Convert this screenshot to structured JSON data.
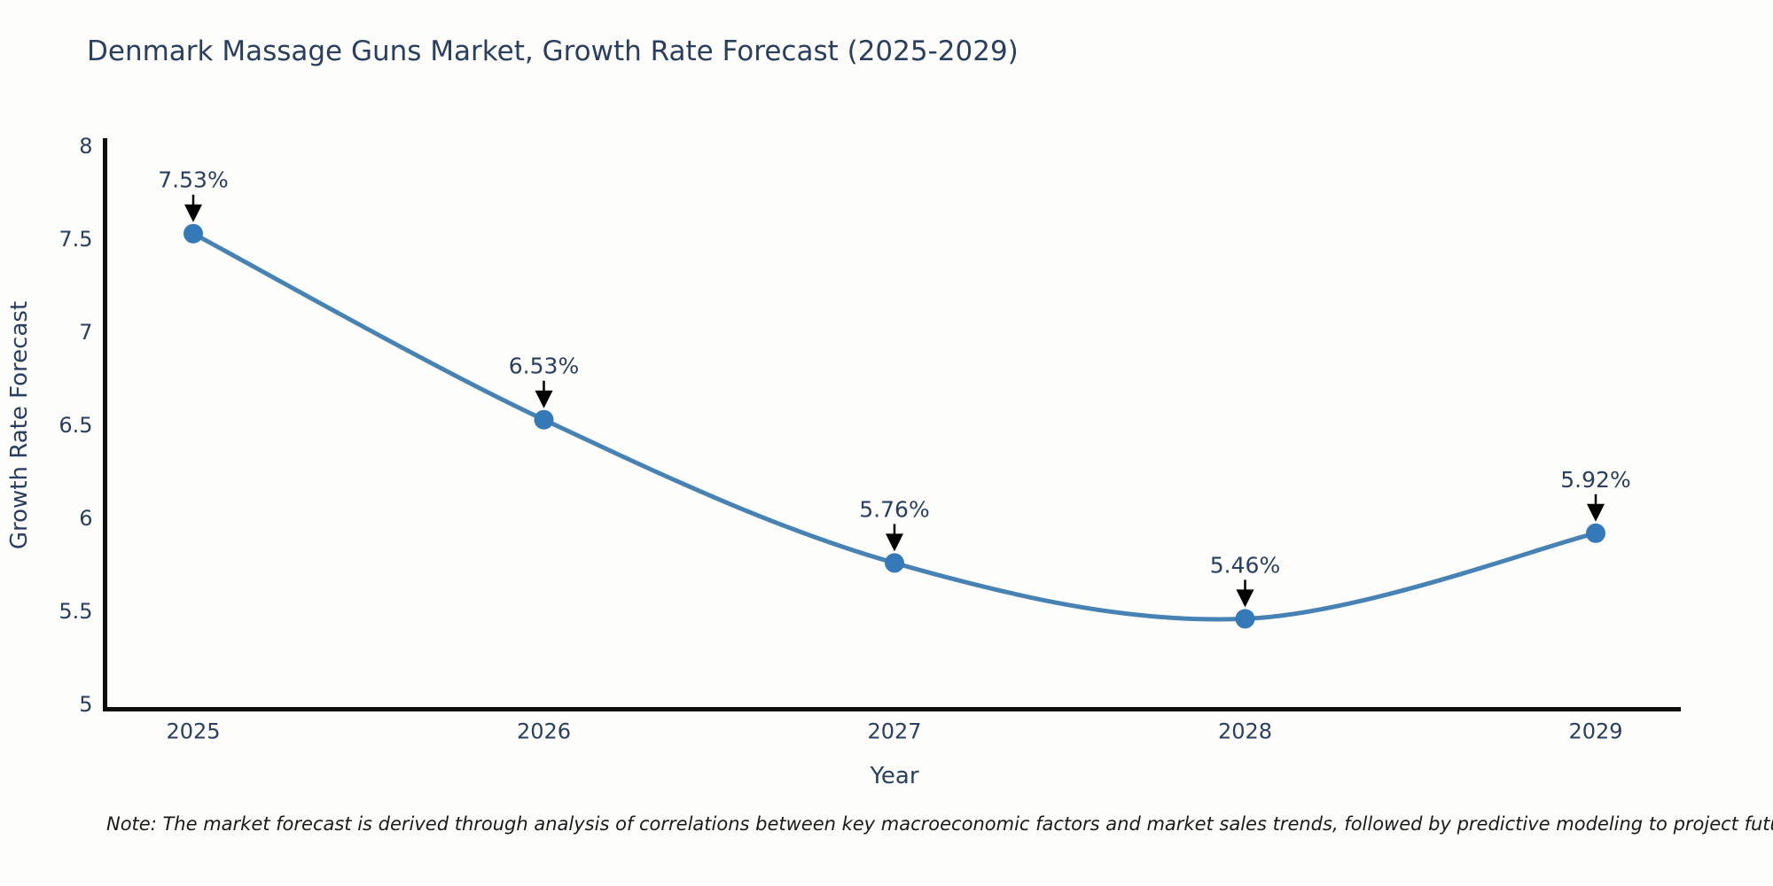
{
  "chart_data": {
    "type": "line",
    "line_shape": "spline",
    "title": "Denmark Massage Guns Market, Growth Rate Forecast (2025-2029)",
    "xlabel": "Year",
    "ylabel": "Growth Rate Forecast",
    "categories": [
      "2025",
      "2026",
      "2027",
      "2028",
      "2029"
    ],
    "series": [
      {
        "name": "Growth Rate Forecast",
        "values": [
          7.53,
          6.53,
          5.76,
          5.46,
          5.92
        ]
      }
    ],
    "point_labels": [
      "7.53%",
      "6.53%",
      "5.76%",
      "5.46%",
      "5.92%"
    ],
    "ylim": [
      5,
      8
    ],
    "yticks": [
      5,
      5.5,
      6,
      6.5,
      7,
      7.5,
      8
    ],
    "ytick_labels": [
      "5",
      "5.5",
      "6",
      "6.5",
      "7",
      "7.5",
      "8"
    ],
    "grid": false,
    "legend_position": "none",
    "colors": {
      "line": "#4682b4",
      "marker": "#3579b8",
      "axis": "#0d0d0d",
      "text": "#2a3f5f",
      "arrow": "#000000",
      "background": "#fdfdfc"
    }
  },
  "note": {
    "text": "Note: The market forecast is derived through analysis of correlations between key macroeconomic factors and market sales trends, followed by predictive modeling to project future sales"
  }
}
